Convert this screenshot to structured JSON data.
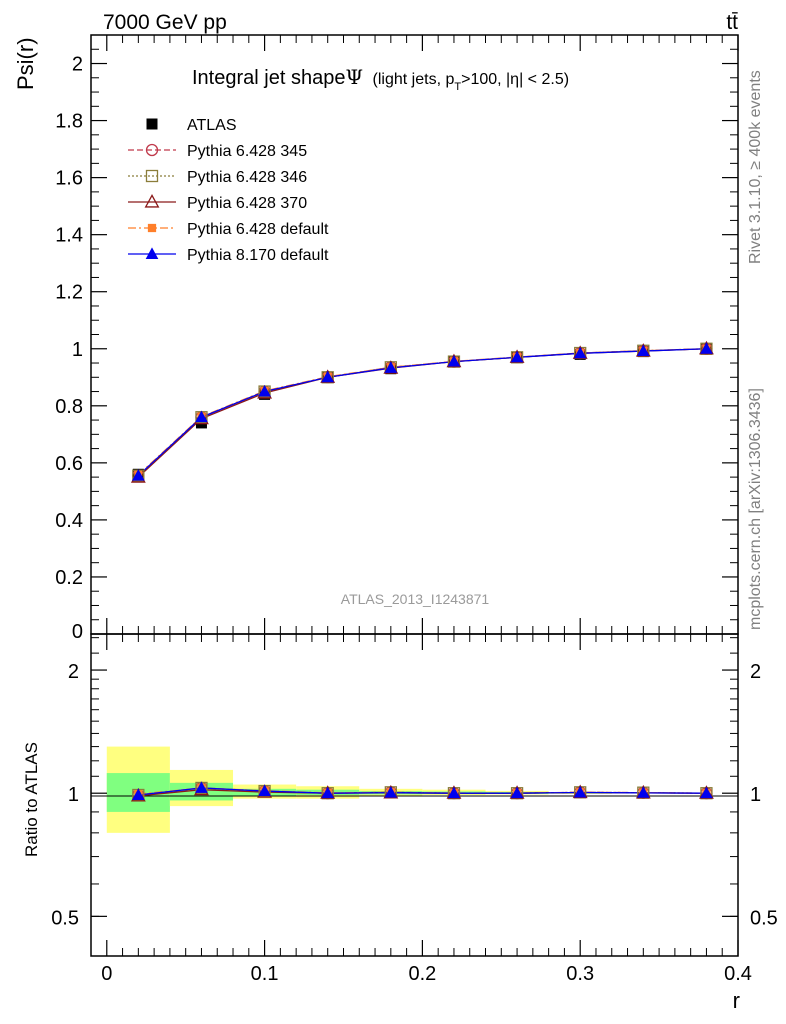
{
  "header": {
    "energy_label": "7000 GeV pp",
    "process_label": "tt̄"
  },
  "side_text": {
    "rivet": "Rivet 3.1.10, ≥ 400k events",
    "mcplots": "mcplots.cern.ch [arXiv:1306.3436]"
  },
  "watermark": "ATLAS_2013_I1243871",
  "colors": {
    "band_inner": "#80ff80",
    "band_outer": "#ffff80"
  },
  "chart_data": [
    {
      "type": "line",
      "title_main": "Integral jet shape",
      "title_symbol": "Ψ",
      "title_cut": "(light jets, p",
      "title_cut_sub": "T",
      "title_cut_rest": ">100, |η| < 2.5)",
      "ylabel": "Psi(r)",
      "xlim": [
        -0.01,
        0.4
      ],
      "ylim": [
        0,
        2.1
      ],
      "y_ticks": [
        0.2,
        0.4,
        0.6,
        0.8,
        1,
        1.2,
        1.4,
        1.6,
        1.8,
        2
      ],
      "y_tick_labels": [
        "0.2",
        "0.4",
        "0.6",
        "0.8",
        "1",
        "1.2",
        "1.4",
        "1.6",
        "1.8",
        "2"
      ],
      "y_tick_label_cut": "0",
      "x": [
        0.02,
        0.06,
        0.1,
        0.14,
        0.18,
        0.22,
        0.26,
        0.3,
        0.34,
        0.38
      ],
      "legend_position": "top-left",
      "series": [
        {
          "name": "ATLAS",
          "color": "#000000",
          "marker": "filled-square",
          "line": "none",
          "values": [
            0.56,
            0.74,
            0.84,
            0.9,
            0.93,
            0.955,
            0.97,
            0.98,
            0.99,
            1.0
          ]
        },
        {
          "name": "Pythia 6.428 345",
          "color": "#c0394b",
          "marker": "open-circle",
          "line": "dashed",
          "values": [
            0.555,
            0.76,
            0.85,
            0.9,
            0.935,
            0.955,
            0.97,
            0.985,
            0.993,
            1.0
          ]
        },
        {
          "name": "Pythia 6.428 346",
          "color": "#8b7d3a",
          "marker": "open-square",
          "line": "dotted",
          "values": [
            0.555,
            0.76,
            0.85,
            0.9,
            0.935,
            0.955,
            0.97,
            0.985,
            0.993,
            1.0
          ]
        },
        {
          "name": "Pythia 6.428 370",
          "color": "#8b1a1a",
          "marker": "open-triangle",
          "line": "solid",
          "values": [
            0.55,
            0.755,
            0.845,
            0.9,
            0.932,
            0.955,
            0.97,
            0.984,
            0.992,
            1.0
          ]
        },
        {
          "name": "Pythia 6.428 default",
          "color": "#ff7f2a",
          "marker": "filled-square-small",
          "line": "dashdot",
          "values": [
            0.558,
            0.762,
            0.852,
            0.902,
            0.935,
            0.956,
            0.971,
            0.985,
            0.993,
            1.0
          ]
        },
        {
          "name": "Pythia 8.170 default",
          "color": "#0000ee",
          "marker": "filled-triangle",
          "line": "solid",
          "values": [
            0.555,
            0.76,
            0.85,
            0.9,
            0.933,
            0.955,
            0.97,
            0.984,
            0.992,
            1.0
          ]
        }
      ]
    },
    {
      "type": "line",
      "ylabel": "Ratio to ATLAS",
      "xlabel": "r",
      "scale": "log",
      "ylim": [
        0.4,
        2.45
      ],
      "x_ticks": [
        0,
        0.1,
        0.2,
        0.3,
        0.4
      ],
      "x_tick_labels": [
        "0",
        "0.1",
        "0.2",
        "0.3",
        "0.4"
      ],
      "y_ticks": [
        0.5,
        1,
        2
      ],
      "y_tick_labels": [
        "0.5",
        "1",
        "2"
      ],
      "x": [
        0.02,
        0.06,
        0.1,
        0.14,
        0.18,
        0.22,
        0.26,
        0.3,
        0.34,
        0.38
      ],
      "bands": [
        {
          "x_low": 0.0,
          "x_high": 0.04,
          "inner": [
            0.9,
            1.12
          ],
          "outer": [
            0.8,
            1.3
          ]
        },
        {
          "x_low": 0.04,
          "x_high": 0.08,
          "inner": [
            0.96,
            1.06
          ],
          "outer": [
            0.93,
            1.14
          ]
        },
        {
          "x_low": 0.08,
          "x_high": 0.12,
          "inner": [
            0.985,
            1.025
          ],
          "outer": [
            0.97,
            1.05
          ]
        },
        {
          "x_low": 0.12,
          "x_high": 0.16,
          "inner": [
            0.99,
            1.02
          ],
          "outer": [
            0.97,
            1.04
          ]
        },
        {
          "x_low": 0.16,
          "x_high": 0.2,
          "inner": [
            0.993,
            1.012
          ],
          "outer": [
            0.985,
            1.025
          ]
        },
        {
          "x_low": 0.2,
          "x_high": 0.24,
          "inner": [
            0.995,
            1.01
          ],
          "outer": [
            0.99,
            1.02
          ]
        },
        {
          "x_low": 0.24,
          "x_high": 0.28,
          "inner": [
            0.996,
            1.007
          ],
          "outer": [
            0.993,
            1.013
          ]
        },
        {
          "x_low": 0.28,
          "x_high": 0.32,
          "inner": [
            0.998,
            1.004
          ],
          "outer": [
            0.996,
            1.006
          ]
        },
        {
          "x_low": 0.32,
          "x_high": 0.36,
          "inner": [
            0.999,
            1.002
          ],
          "outer": [
            0.998,
            1.003
          ]
        },
        {
          "x_low": 0.36,
          "x_high": 0.4,
          "inner": [
            1.0,
            1.0
          ],
          "outer": [
            1.0,
            1.0
          ]
        }
      ],
      "series": [
        {
          "name": "Pythia 6.428 345",
          "values": [
            0.99,
            1.03,
            1.012,
            1.0,
            1.005,
            1.0,
            1.0,
            1.005,
            1.003,
            1.0
          ]
        },
        {
          "name": "Pythia 6.428 346",
          "values": [
            0.99,
            1.03,
            1.012,
            1.0,
            1.005,
            1.0,
            1.0,
            1.005,
            1.003,
            1.0
          ]
        },
        {
          "name": "Pythia 6.428 370",
          "values": [
            0.985,
            1.02,
            1.006,
            1.0,
            1.002,
            1.0,
            1.0,
            1.004,
            1.002,
            1.0
          ]
        },
        {
          "name": "Pythia 6.428 default",
          "values": [
            0.995,
            1.03,
            1.014,
            1.002,
            1.005,
            1.001,
            1.001,
            1.005,
            1.003,
            1.0
          ]
        },
        {
          "name": "Pythia 8.170 default",
          "values": [
            0.99,
            1.03,
            1.012,
            1.0,
            1.003,
            1.0,
            1.0,
            1.004,
            1.002,
            1.0
          ]
        }
      ]
    }
  ]
}
